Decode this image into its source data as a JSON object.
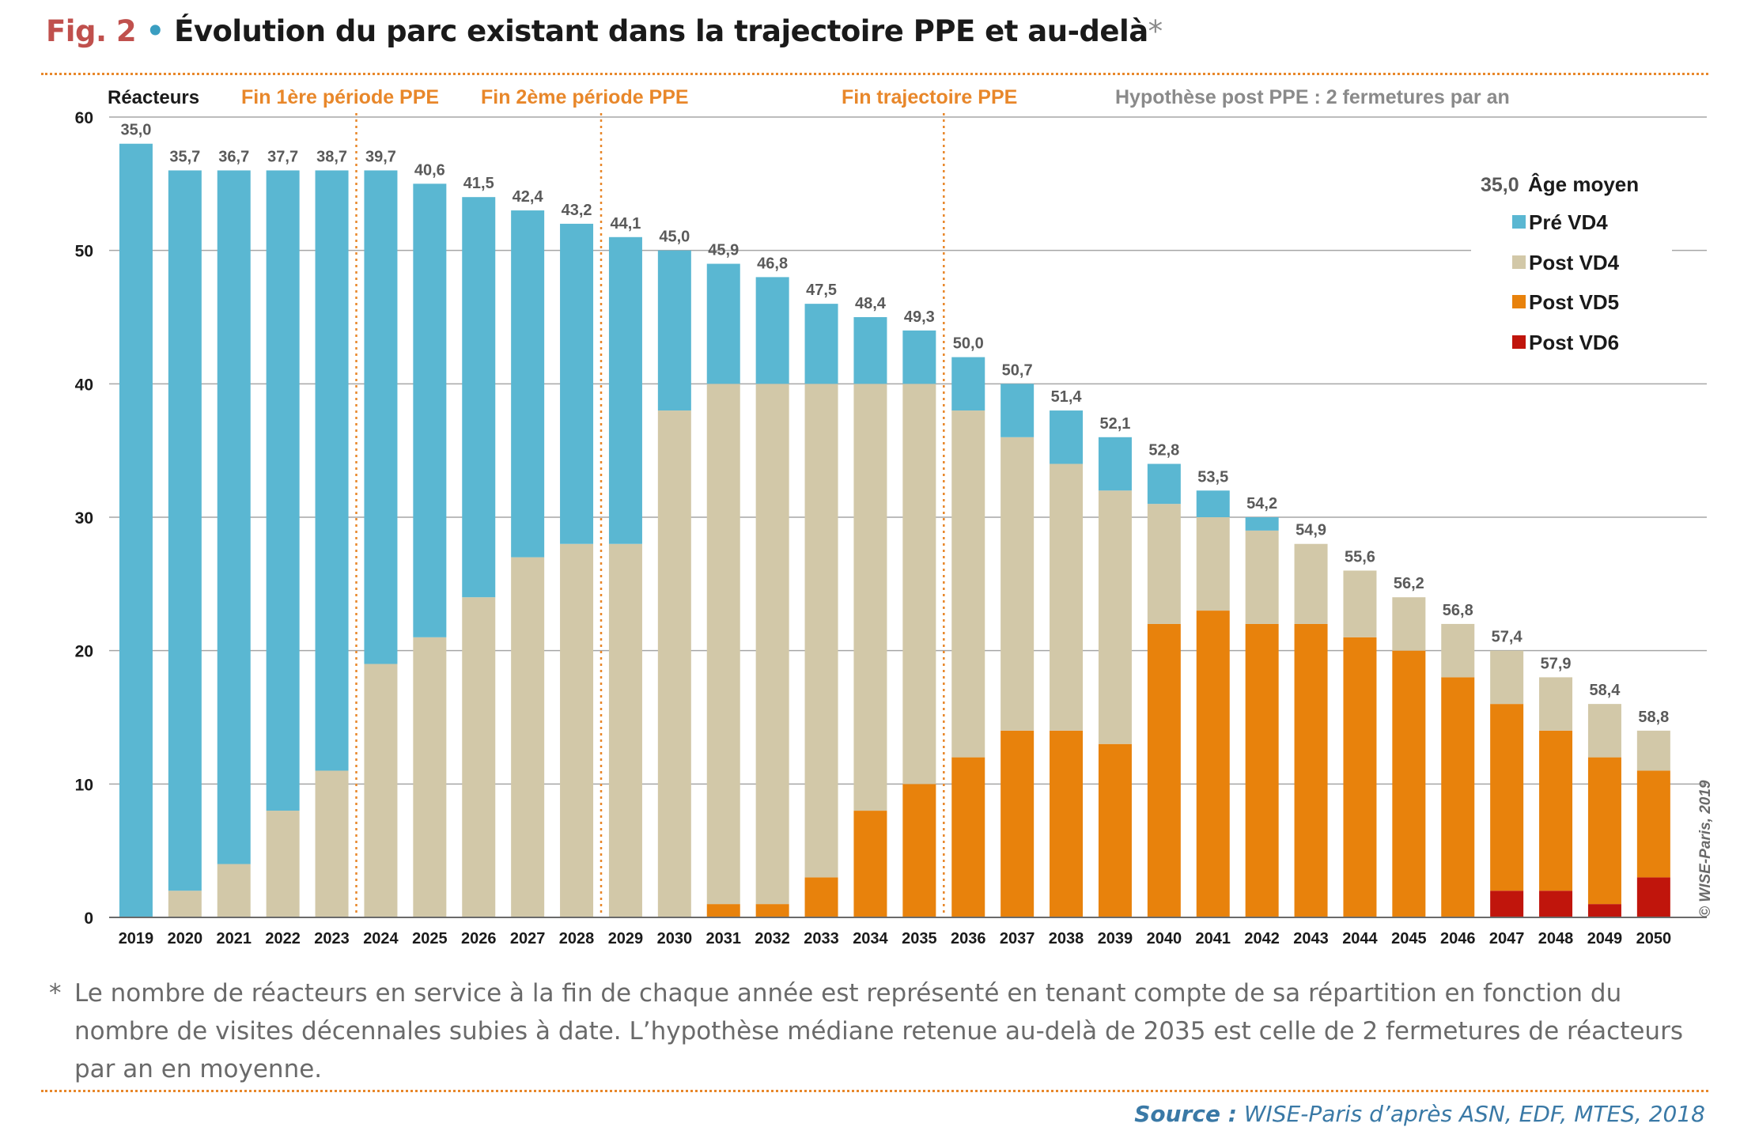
{
  "figure": {
    "number": "Fig. 2",
    "bullet": "•",
    "title": "Évolution du parc existant dans la trajectoire PPE et au-delà",
    "asterisk": "*"
  },
  "annotations": {
    "period1": "Fin 1ère période PPE",
    "period2": "Fin 2ème période PPE",
    "trajectory": "Fin trajectoire PPE",
    "hypothesis": "Hypothèse post PPE : 2 fermetures par an"
  },
  "footnote": {
    "mark": "*",
    "text": "Le nombre de réacteurs en service à la fin de chaque année est représenté en tenant compte de sa répartition en fonction du nombre de visites décennales subies à date. L’hypothèse médiane retenue au-delà de 2035 est celle de 2 fermetures de réacteurs par an en moyenne."
  },
  "source": {
    "label": "Source :",
    "text": "WISE-Paris d’après ASN, EDF, MTES, 2018"
  },
  "copyright": "© WISE-Paris, 2019",
  "colors": {
    "pre_vd4": "#5ab7d2",
    "post_vd4": "#d2c8a8",
    "post_vd5": "#e8820c",
    "post_vd6": "#c0150c",
    "accent": "#e8872a",
    "age_label": "#5a5a5a",
    "grid": "#a6a6a6"
  },
  "chart_data": {
    "type": "bar",
    "stacked": true,
    "ylabel": "Réacteurs",
    "ylim": [
      0,
      60
    ],
    "yticks": [
      "0",
      "10",
      "20",
      "30",
      "40",
      "50",
      "60"
    ],
    "grid": true,
    "categories": [
      "2019",
      "2020",
      "2021",
      "2022",
      "2023",
      "2024",
      "2025",
      "2026",
      "2027",
      "2028",
      "2029",
      "2030",
      "2031",
      "2032",
      "2033",
      "2034",
      "2035",
      "2036",
      "2037",
      "2038",
      "2039",
      "2040",
      "2041",
      "2042",
      "2043",
      "2044",
      "2045",
      "2046",
      "2047",
      "2048",
      "2049",
      "2050"
    ],
    "series": [
      {
        "name": "Post VD6",
        "color": "#c0150c",
        "values": [
          0,
          0,
          0,
          0,
          0,
          0,
          0,
          0,
          0,
          0,
          0,
          0,
          0,
          0,
          0,
          0,
          0,
          0,
          0,
          0,
          0,
          0,
          0,
          0,
          0,
          0,
          0,
          0,
          2,
          2,
          1,
          3
        ]
      },
      {
        "name": "Post VD5",
        "color": "#e8820c",
        "values": [
          0,
          0,
          0,
          0,
          0,
          0,
          0,
          0,
          0,
          0,
          0,
          0,
          1,
          1,
          3,
          8,
          10,
          12,
          14,
          14,
          13,
          22,
          23,
          22,
          22,
          21,
          20,
          18,
          14,
          12,
          11,
          8
        ]
      },
      {
        "name": "Post VD4",
        "color": "#d2c8a8",
        "values": [
          0,
          2,
          4,
          8,
          11,
          19,
          21,
          24,
          27,
          28,
          28,
          38,
          39,
          39,
          37,
          32,
          30,
          26,
          22,
          20,
          19,
          9,
          7,
          7,
          6,
          5,
          4,
          4,
          4,
          4,
          4,
          3
        ]
      },
      {
        "name": "Pré VD4",
        "color": "#5ab7d2",
        "values": [
          58,
          54,
          52,
          48,
          45,
          37,
          34,
          30,
          26,
          24,
          23,
          12,
          9,
          8,
          6,
          5,
          4,
          4,
          4,
          4,
          4,
          3,
          2,
          1,
          0,
          0,
          0,
          0,
          0,
          0,
          0,
          0
        ]
      }
    ],
    "age_moyen": {
      "name": "Âge moyen",
      "values": [
        "35,0",
        "35,7",
        "36,7",
        "37,7",
        "38,7",
        "39,7",
        "40,6",
        "41,5",
        "42,4",
        "43,2",
        "44,1",
        "45,0",
        "45,9",
        "46,8",
        "47,5",
        "48,4",
        "49,3",
        "50,0",
        "50,7",
        "51,4",
        "52,1",
        "52,8",
        "53,5",
        "54,2",
        "54,9",
        "55,6",
        "56,2",
        "56,8",
        "57,4",
        "57,9",
        "58,4",
        "58,8"
      ]
    },
    "period_markers": [
      {
        "after": "2023",
        "label": "Fin 1ère période PPE"
      },
      {
        "after": "2028",
        "label": "Fin 2ème période PPE"
      },
      {
        "after": "2035",
        "label": "Fin trajectoire PPE"
      }
    ],
    "legend": {
      "placement": "top-right",
      "header_value": "35,0",
      "header_label": "Âge moyen",
      "items": [
        {
          "label": "Pré VD4",
          "color": "#5ab7d2"
        },
        {
          "label": "Post VD4",
          "color": "#d2c8a8"
        },
        {
          "label": "Post VD5",
          "color": "#e8820c"
        },
        {
          "label": "Post VD6",
          "color": "#c0150c"
        }
      ]
    }
  }
}
